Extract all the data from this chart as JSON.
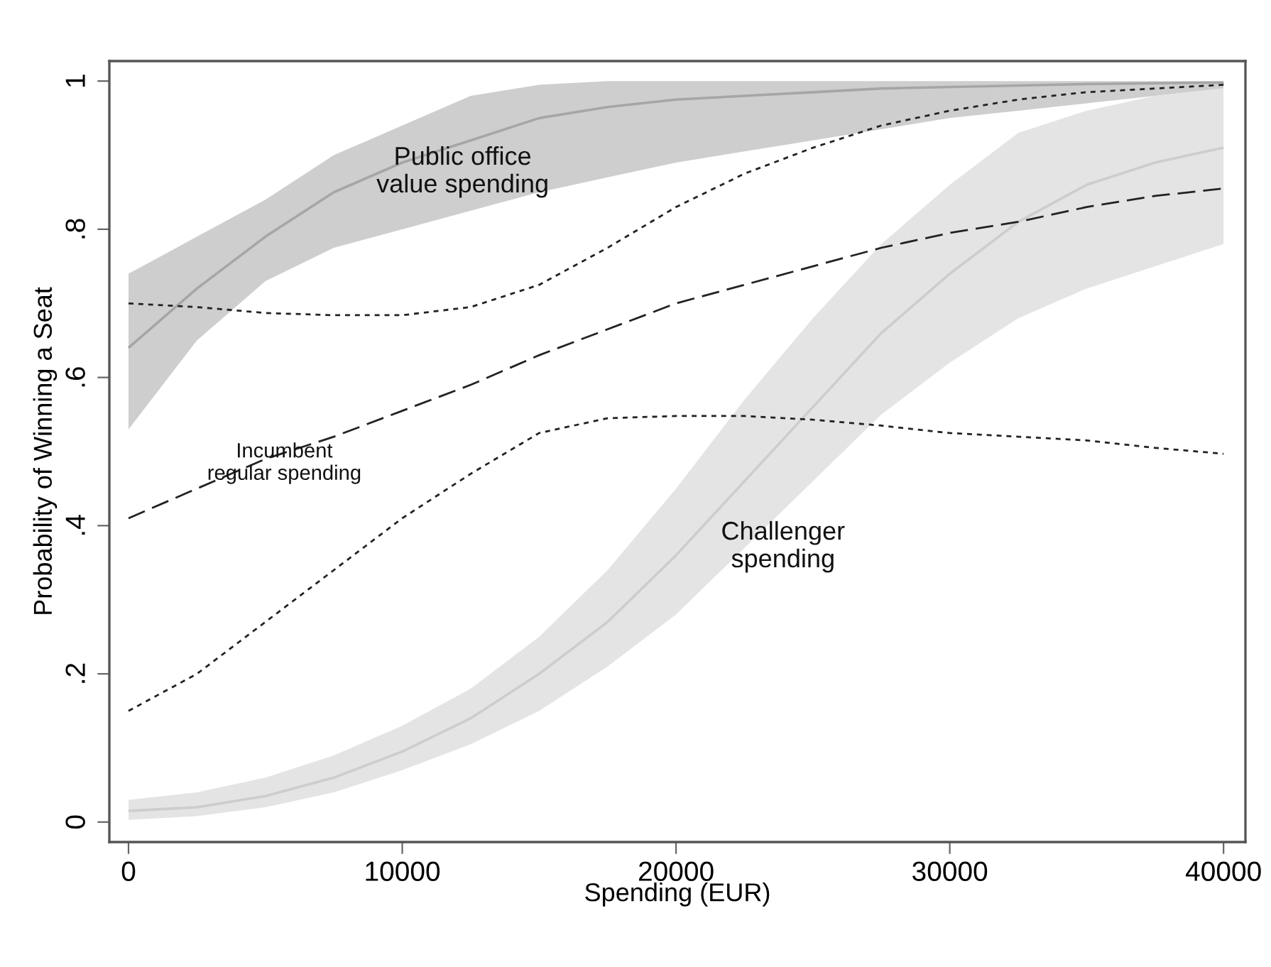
{
  "chart_data": {
    "type": "line",
    "xlabel": "Spending (EUR)",
    "ylabel": "Probability of Winning a Seat",
    "x": [
      0,
      2500,
      5000,
      7500,
      10000,
      12500,
      15000,
      17500,
      20000,
      22500,
      25000,
      27500,
      30000,
      32500,
      35000,
      37500,
      40000
    ],
    "series": [
      {
        "color": "#a6a6a6",
        "line_style": "solid",
        "values": [
          0.64,
          0.72,
          0.79,
          0.85,
          0.89,
          0.92,
          0.95,
          0.965,
          0.975,
          0.98,
          0.985,
          0.99,
          0.992,
          0.994,
          0.996,
          0.997,
          0.998
        ],
        "lower": [
          0.53,
          0.65,
          0.73,
          0.775,
          0.8,
          0.825,
          0.85,
          0.87,
          0.89,
          0.905,
          0.92,
          0.935,
          0.95,
          0.96,
          0.97,
          0.98,
          0.99
        ],
        "upper": [
          0.74,
          0.79,
          0.84,
          0.9,
          0.94,
          0.98,
          0.995,
          1.0,
          1.0,
          1.0,
          1.0,
          1.0,
          1.0,
          1.0,
          1.0,
          1.0,
          1.0
        ]
      },
      {
        "color": "#cdcdcd",
        "line_style": "solid",
        "values": [
          0.015,
          0.02,
          0.035,
          0.06,
          0.095,
          0.14,
          0.2,
          0.27,
          0.36,
          0.46,
          0.56,
          0.66,
          0.74,
          0.81,
          0.86,
          0.89,
          0.91
        ],
        "lower": [
          0.003,
          0.008,
          0.02,
          0.04,
          0.07,
          0.105,
          0.15,
          0.21,
          0.28,
          0.37,
          0.46,
          0.55,
          0.62,
          0.68,
          0.72,
          0.75,
          0.78
        ],
        "upper": [
          0.03,
          0.04,
          0.06,
          0.09,
          0.13,
          0.18,
          0.25,
          0.34,
          0.45,
          0.57,
          0.68,
          0.78,
          0.86,
          0.93,
          0.96,
          0.98,
          0.99
        ]
      },
      {
        "color": "#222222",
        "line_style": "dashed",
        "values": [
          0.41,
          0.45,
          0.49,
          0.52,
          0.555,
          0.59,
          0.63,
          0.665,
          0.7,
          0.725,
          0.75,
          0.775,
          0.795,
          0.81,
          0.83,
          0.845,
          0.855
        ]
      },
      {
        "color": "#222222",
        "line_style": "dotted",
        "values": [
          0.7,
          0.695,
          0.687,
          0.684,
          0.684,
          0.695,
          0.725,
          0.775,
          0.83,
          0.875,
          0.91,
          0.94,
          0.96,
          0.975,
          0.985,
          0.99,
          0.995
        ]
      },
      {
        "color": "#222222",
        "line_style": "dotted",
        "values": [
          0.15,
          0.2,
          0.27,
          0.34,
          0.41,
          0.47,
          0.525,
          0.545,
          0.548,
          0.548,
          0.543,
          0.535,
          0.525,
          0.52,
          0.515,
          0.505,
          0.497
        ]
      }
    ],
    "annotations": [
      "Public office\nvalue spending",
      "Incumbent\nregular spending",
      "Challenger\nspending"
    ],
    "xlim": [
      -700,
      40800
    ],
    "ylim": [
      -0.027,
      1.027
    ],
    "xticks": [
      0,
      10000,
      20000,
      30000,
      40000
    ],
    "yticks": [
      0,
      {
        "value": 0.2,
        "label": ".2"
      },
      {
        "value": 0.4,
        "label": ".4"
      },
      {
        "value": 0.6,
        "label": ".6"
      },
      {
        "value": 0.8,
        "label": ".8"
      },
      1
    ],
    "grid": false,
    "marker": "none"
  }
}
